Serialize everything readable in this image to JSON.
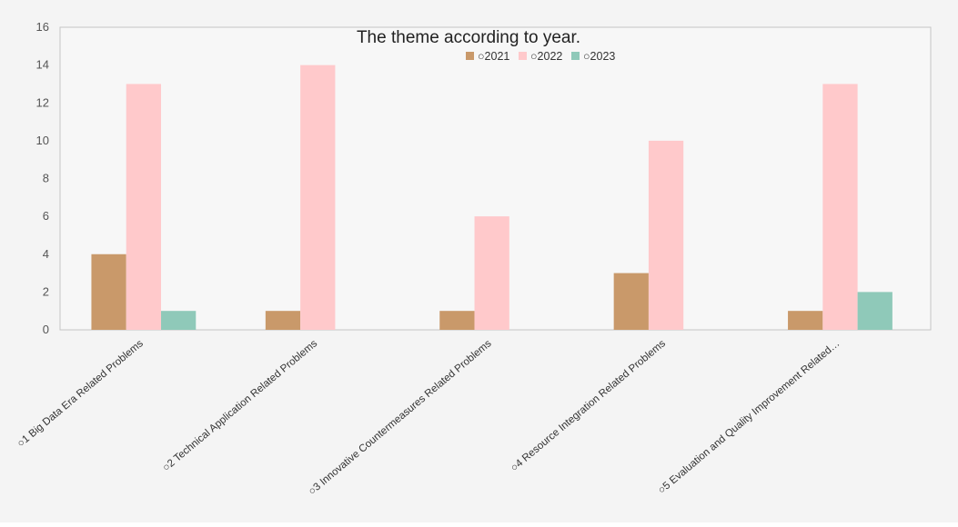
{
  "chart_data": {
    "type": "bar",
    "title": "The theme according to year.",
    "xlabel": "",
    "ylabel": "",
    "ylim": [
      0,
      16
    ],
    "yticks": [
      0,
      2,
      4,
      6,
      8,
      10,
      12,
      14,
      16
    ],
    "grid": false,
    "legend_position": "top-center",
    "categories": [
      "○1 Big Data Era Related Problems",
      "○2 Technical Application Related Problems",
      "○3 Innovative Countermeasures Related Problems",
      "○4 Resource Integration Related Problems",
      "○5 Evaluation and Quality Improvement Related…"
    ],
    "series": [
      {
        "name": "○2021",
        "color": "#c9996a",
        "values": [
          4,
          1,
          1,
          3,
          1
        ]
      },
      {
        "name": "○2022",
        "color": "#ffc9cb",
        "values": [
          13,
          14,
          6,
          10,
          13
        ]
      },
      {
        "name": "○2023",
        "color": "#8fc9b9",
        "values": [
          1,
          0,
          0,
          0,
          2
        ]
      }
    ]
  }
}
